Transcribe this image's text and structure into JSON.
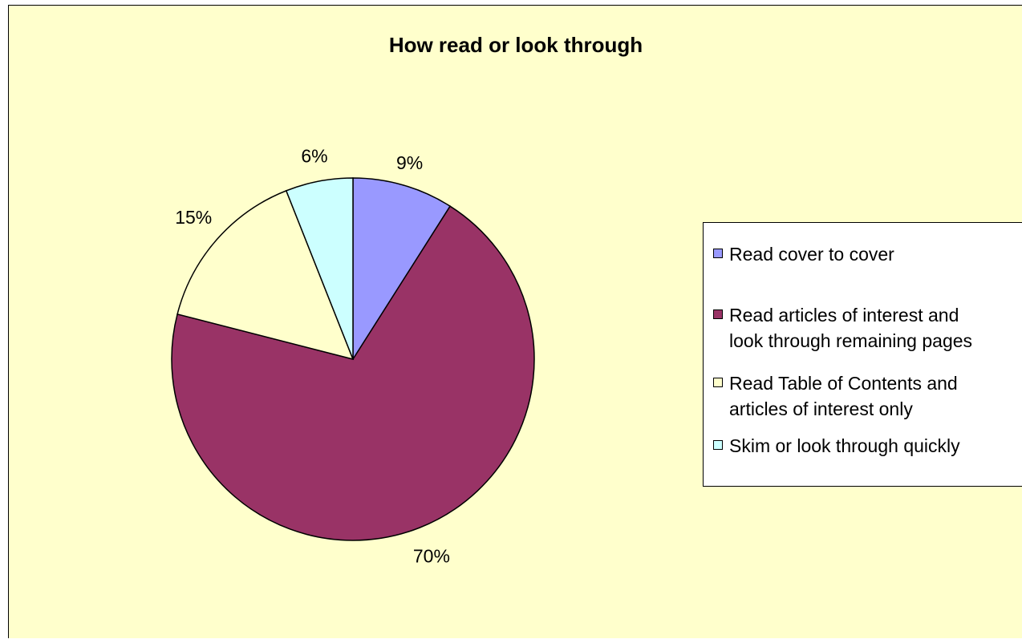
{
  "chart_data": {
    "type": "pie",
    "title": "How read or look through",
    "categories": [
      "Read cover to cover",
      "Read articles of interest and look through remaining pages",
      "Read Table of Contents and articles of interest only",
      "Skim or look through quickly"
    ],
    "values": [
      9,
      70,
      15,
      6
    ],
    "value_labels": [
      "9%",
      "70%",
      "15%",
      "6%"
    ],
    "colors": [
      "#9999ff",
      "#993366",
      "#ffffcc",
      "#ccffff"
    ],
    "legend": {
      "position": "right",
      "entries": [
        {
          "label": "Read cover to cover",
          "color": "#9999ff"
        },
        {
          "label": "Read articles of interest and\nlook through remaining pages",
          "color": "#993366"
        },
        {
          "label": "Read Table of Contents and\narticles of interest only",
          "color": "#ffffcc"
        },
        {
          "label": "Skim or look through quickly",
          "color": "#ccffff"
        }
      ]
    },
    "background": "#ffffcc"
  }
}
